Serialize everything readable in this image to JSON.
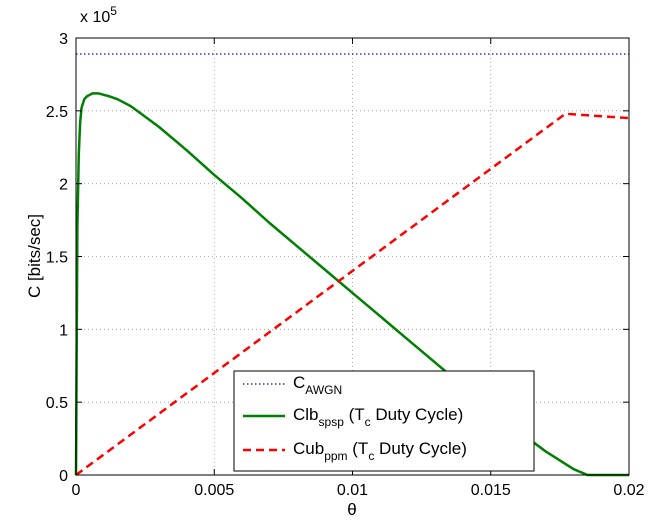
{
  "chart_data": {
    "type": "line",
    "xlabel": "θ",
    "ylabel": "C [bits/sec]",
    "y_multiplier": "x 10",
    "y_multiplier_exp": "5",
    "xlim": [
      0,
      0.02
    ],
    "ylim": [
      0,
      3
    ],
    "x_ticks": [
      0,
      0.005,
      0.01,
      0.015,
      0.02
    ],
    "x_tick_labels": [
      "0",
      "0.005",
      "0.01",
      "0.015",
      "0.02"
    ],
    "y_ticks": [
      0,
      0.5,
      1,
      1.5,
      2,
      2.5,
      3
    ],
    "y_tick_labels": [
      "0",
      "0.5",
      "1",
      "1.5",
      "2",
      "2.5",
      "3"
    ],
    "grid": true,
    "legend_position": "bottom-right",
    "series": [
      {
        "name": "C",
        "name_sub": "AWGN",
        "name_suffix": "",
        "color": "#3333cc",
        "style": "dotted",
        "x": [
          0,
          0.02
        ],
        "y": [
          2.89,
          2.89
        ]
      },
      {
        "name": "Clb",
        "name_sub": "spsp",
        "name_suffix": " (T",
        "name_suffix_sub": "c",
        "name_tail": " Duty Cycle)",
        "color": "#007f00",
        "style": "solid",
        "x": [
          0,
          5e-05,
          0.0001,
          0.00015,
          0.0002,
          0.0003,
          0.0004,
          0.0005,
          0.0006,
          0.0007,
          0.0008,
          0.001,
          0.0012,
          0.0015,
          0.002,
          0.003,
          0.004,
          0.005,
          0.006,
          0.007,
          0.008,
          0.009,
          0.01,
          0.011,
          0.012,
          0.013,
          0.014,
          0.015,
          0.016,
          0.017,
          0.018,
          0.0185,
          0.019,
          0.02
        ],
        "y": [
          0,
          1.7,
          2.2,
          2.42,
          2.52,
          2.58,
          2.6,
          2.61,
          2.62,
          2.62,
          2.62,
          2.61,
          2.6,
          2.58,
          2.53,
          2.39,
          2.23,
          2.06,
          1.9,
          1.73,
          1.57,
          1.41,
          1.25,
          1.09,
          0.93,
          0.77,
          0.61,
          0.46,
          0.3,
          0.16,
          0.04,
          0,
          0,
          0
        ]
      },
      {
        "name": "Cub",
        "name_sub": "ppm",
        "name_suffix": " (T",
        "name_suffix_sub": "c",
        "name_tail": " Duty Cycle)",
        "color": "#ff0000",
        "style": "dashed",
        "x": [
          0,
          0.0177,
          0.02
        ],
        "y": [
          0,
          2.48,
          2.45
        ]
      }
    ]
  }
}
